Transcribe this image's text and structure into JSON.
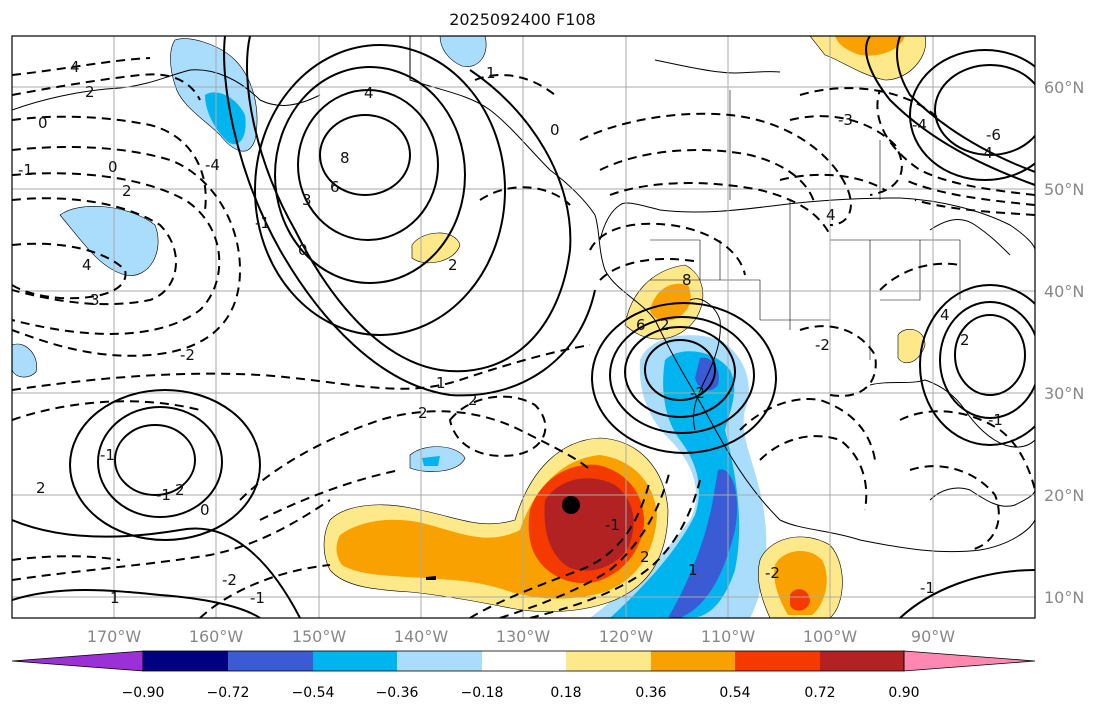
{
  "title": "2025092400 F108",
  "map": {
    "lon_labels": [
      "170°W",
      "160°W",
      "150°W",
      "140°W",
      "130°W",
      "120°W",
      "110°W",
      "100°W",
      "90°W"
    ],
    "lat_labels": [
      "60°N",
      "50°N",
      "40°N",
      "30°N",
      "20°N",
      "10°N"
    ],
    "contour_labels": [
      "4",
      "2",
      "0",
      "-1",
      "0",
      "2",
      "4",
      "8",
      "6",
      "1",
      "0",
      "4",
      "2",
      "3",
      "-2",
      "1",
      "2",
      "2",
      "-2",
      "-1",
      "-1",
      "2",
      "2",
      "0",
      "-2",
      "-1",
      "1",
      "-1",
      "2",
      "1",
      "-2",
      "-1",
      "4",
      "-6",
      "-4",
      "-4",
      "-3",
      "4",
      "-2",
      "2",
      "-1",
      "6",
      "8",
      "2",
      "3",
      "-1",
      "0",
      "-4"
    ],
    "marker": "storm-center-dot"
  },
  "colorbar": {
    "ticks": [
      "−0.90",
      "−0.72",
      "−0.54",
      "−0.36",
      "−0.18",
      "0.18",
      "0.36",
      "0.54",
      "0.72",
      "0.90"
    ],
    "colors": [
      "#9b30d6",
      "#000080",
      "#3a5bd4",
      "#00b4f0",
      "#aadcfb",
      "#ffffff",
      "#fde98a",
      "#f8a100",
      "#f53a00",
      "#b22222",
      "#ff88b0"
    ]
  },
  "colors": {
    "coast": "#000000",
    "grid": "#aaaaaa",
    "contour": "#000000"
  }
}
